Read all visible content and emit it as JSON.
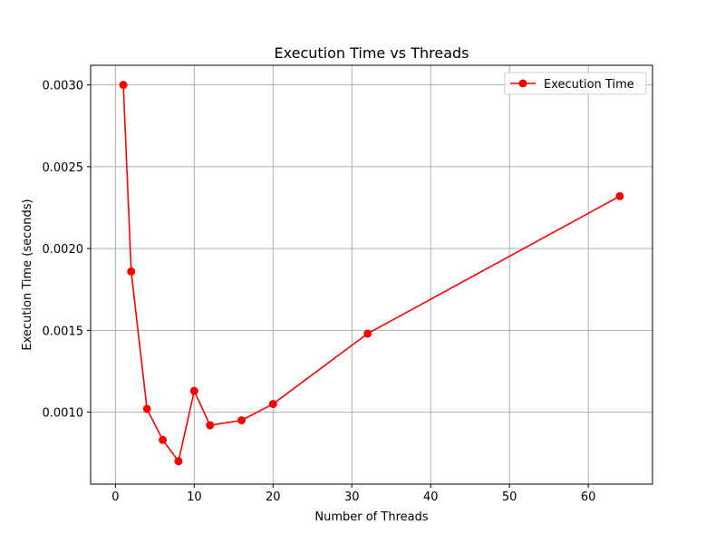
{
  "chart_data": {
    "type": "line",
    "title": "Execution Time vs Threads",
    "xlabel": "Number of Threads",
    "ylabel": "Execution Time (seconds)",
    "xlim": [
      -3.15,
      68.15
    ],
    "ylim": [
      0.00056,
      0.00312
    ],
    "xticks": [
      0,
      10,
      20,
      30,
      40,
      50,
      60
    ],
    "xtick_labels": [
      "0",
      "10",
      "20",
      "30",
      "40",
      "50",
      "60"
    ],
    "yticks": [
      0.001,
      0.0015,
      0.002,
      0.0025,
      0.003
    ],
    "ytick_labels": [
      "0.0010",
      "0.0015",
      "0.0020",
      "0.0025",
      "0.0030"
    ],
    "grid": true,
    "legend_position": "top-right",
    "series": [
      {
        "name": "Execution Time",
        "color": "#ff0000",
        "marker": "circle",
        "x": [
          1,
          2,
          4,
          6,
          8,
          10,
          12,
          16,
          20,
          32,
          64
        ],
        "y": [
          0.003,
          0.00186,
          0.00102,
          0.00083,
          0.0007,
          0.00113,
          0.00092,
          0.00095,
          0.00105,
          0.00148,
          0.00232
        ]
      }
    ]
  }
}
